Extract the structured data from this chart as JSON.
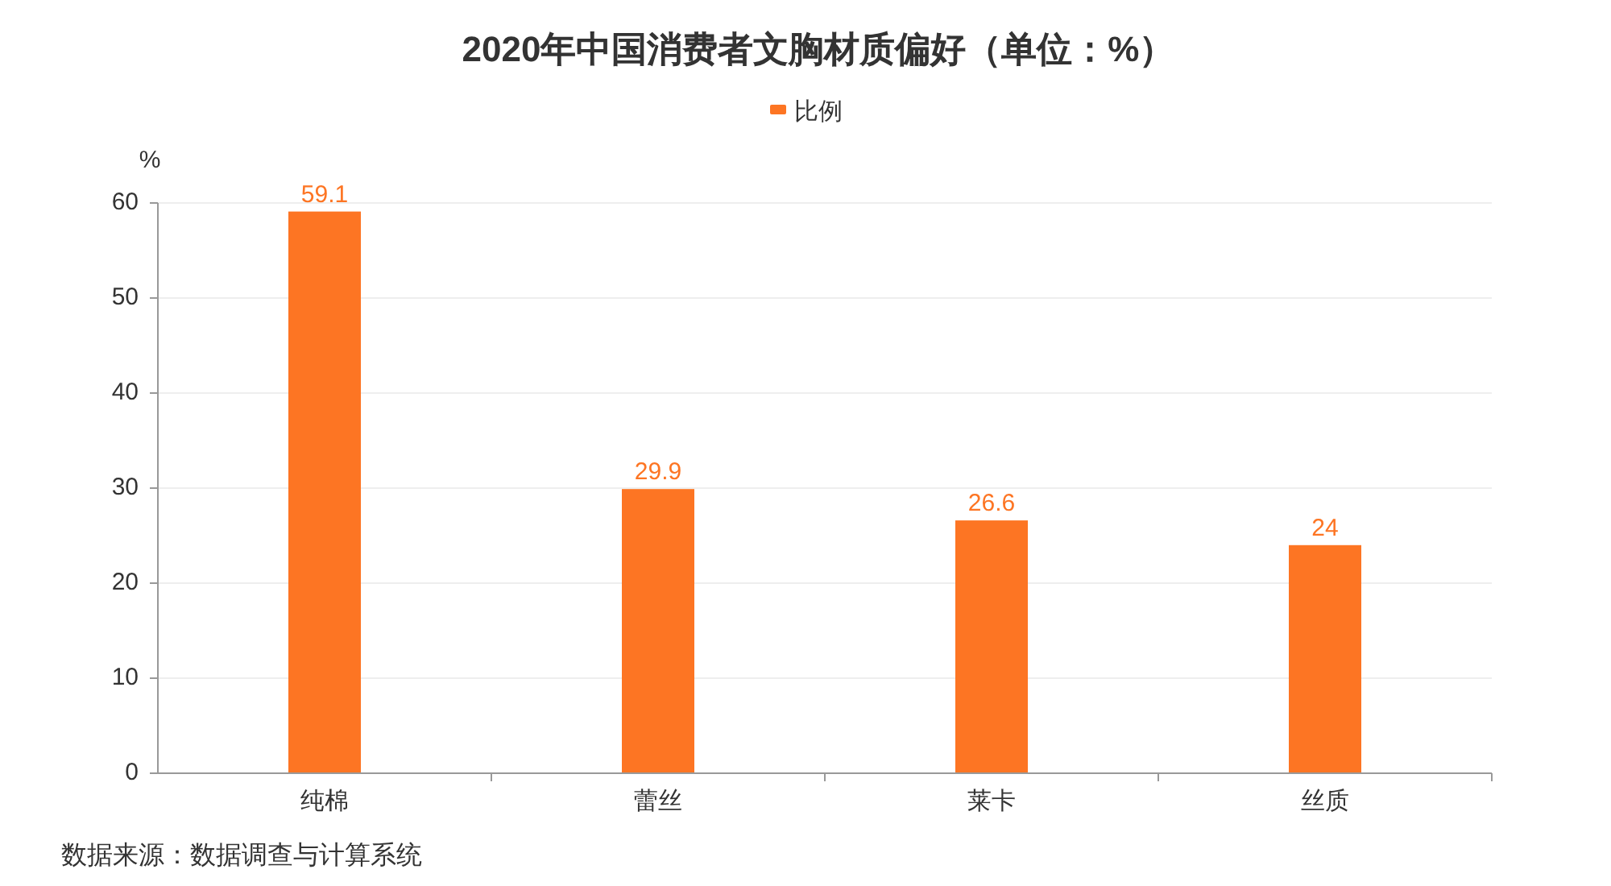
{
  "chart_data": {
    "type": "bar",
    "title": "2020年中国消费者文胸材质偏好（单位：%）",
    "ylabel": "%",
    "categories": [
      "纯棉",
      "蕾丝",
      "莱卡",
      "丝质"
    ],
    "series": [
      {
        "name": "比例",
        "color": "#fd7523",
        "values": [
          59.1,
          29.9,
          26.6,
          24
        ]
      }
    ],
    "ylim": [
      0,
      60
    ],
    "yticks": [
      0,
      10,
      20,
      30,
      40,
      50,
      60
    ],
    "grid": "y",
    "legend": "top",
    "data_labels": true,
    "annotations": [
      "数据来源：数据调查与计算系统"
    ]
  }
}
